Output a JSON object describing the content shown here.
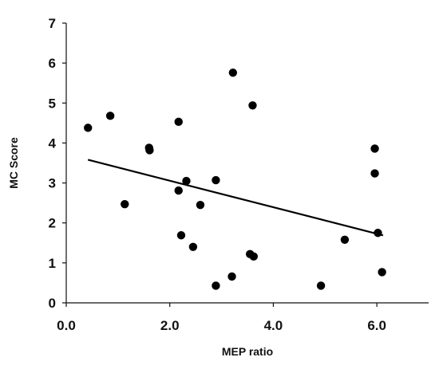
{
  "chart_data": {
    "type": "scatter",
    "title": "",
    "xlabel": "MEP ratio",
    "ylabel": "MC Score",
    "xlim": [
      0,
      7
    ],
    "ylim": [
      0,
      7
    ],
    "x_ticks": [
      0,
      2,
      4,
      6
    ],
    "x_tick_labels": [
      "0.0",
      "2.0",
      "4.0",
      "6.0"
    ],
    "y_ticks": [
      0,
      1,
      2,
      3,
      4,
      5,
      6,
      7
    ],
    "y_tick_labels": [
      "0",
      "1",
      "2",
      "3",
      "4",
      "5",
      "6",
      "7"
    ],
    "grid": false,
    "legend": "none",
    "points": [
      {
        "x": 0.42,
        "y": 4.38
      },
      {
        "x": 0.85,
        "y": 4.68
      },
      {
        "x": 1.13,
        "y": 2.47
      },
      {
        "x": 1.6,
        "y": 3.88
      },
      {
        "x": 1.61,
        "y": 3.82
      },
      {
        "x": 2.17,
        "y": 4.53
      },
      {
        "x": 2.17,
        "y": 2.81
      },
      {
        "x": 2.22,
        "y": 1.69
      },
      {
        "x": 2.32,
        "y": 3.05
      },
      {
        "x": 2.45,
        "y": 1.4
      },
      {
        "x": 2.59,
        "y": 2.45
      },
      {
        "x": 2.89,
        "y": 3.07
      },
      {
        "x": 2.89,
        "y": 0.43
      },
      {
        "x": 3.2,
        "y": 0.66
      },
      {
        "x": 3.22,
        "y": 5.76
      },
      {
        "x": 3.55,
        "y": 1.22
      },
      {
        "x": 3.6,
        "y": 4.94
      },
      {
        "x": 3.62,
        "y": 1.16
      },
      {
        "x": 4.92,
        "y": 0.43
      },
      {
        "x": 5.38,
        "y": 1.58
      },
      {
        "x": 5.96,
        "y": 3.86
      },
      {
        "x": 5.96,
        "y": 3.24
      },
      {
        "x": 6.02,
        "y": 1.75
      },
      {
        "x": 6.1,
        "y": 0.77
      }
    ],
    "trendline": {
      "x": [
        0.42,
        6.12
      ],
      "y": [
        3.58,
        1.69
      ]
    },
    "colors": {
      "points": "#000000",
      "trendline": "#000000",
      "axes": "#111111"
    }
  }
}
